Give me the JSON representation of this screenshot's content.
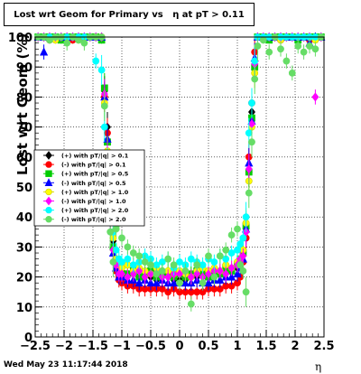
{
  "header": {
    "title": "Lost wrt Geom for Primary vs   η at pT > 0.11"
  },
  "footer": {
    "timestamp": "Wed May 23 11:17:44 2018"
  },
  "chart_data": {
    "type": "scatter",
    "title": "Lost wrt Geom for Primary vs   η at pT > 0.11",
    "xlabel": "η",
    "ylabel": "Lost wrt Geom (%)",
    "xlim": [
      -2.5,
      2.5
    ],
    "ylim": [
      0,
      100
    ],
    "xticks": [
      -2.5,
      -2,
      -1.5,
      -1,
      -0.5,
      0,
      0.5,
      1,
      1.5,
      2,
      2.5
    ],
    "xtick_labels": [
      "−2.5",
      "−2",
      "−1.5",
      "−1",
      "−0.5",
      "0",
      "0.5",
      "1",
      "1.5",
      "2",
      "2.5"
    ],
    "yticks": [
      0,
      10,
      20,
      30,
      40,
      50,
      60,
      70,
      80,
      90,
      100
    ],
    "grid": true,
    "legend_position": "left-middle",
    "series": [
      {
        "name": "(+) with pT/|q| > 0.1",
        "color": "#000000",
        "symbol": "diamond",
        "x": [
          -2.45,
          -2.35,
          -2.25,
          -2.15,
          -2.05,
          -1.95,
          -1.85,
          -1.75,
          -1.65,
          -1.55,
          -1.45,
          -1.35,
          -1.3,
          -1.25,
          -1.2,
          -1.15,
          -1.1,
          -1.05,
          -1,
          -0.9,
          -0.8,
          -0.7,
          -0.6,
          -0.5,
          -0.4,
          -0.3,
          -0.2,
          -0.1,
          0,
          0.1,
          0.2,
          0.3,
          0.4,
          0.5,
          0.6,
          0.7,
          0.8,
          0.9,
          1,
          1.05,
          1.1,
          1.15,
          1.2,
          1.25,
          1.3,
          1.35,
          1.45,
          1.55,
          1.65,
          1.75,
          1.85,
          1.95,
          2.05,
          2.15,
          2.25,
          2.35,
          2.45
        ],
        "y": [
          100,
          100,
          100,
          100,
          100,
          100,
          100,
          100,
          100,
          100,
          100,
          100,
          82,
          70,
          45,
          32,
          26,
          23,
          22,
          21,
          21,
          20,
          20,
          20,
          19,
          20,
          20,
          19,
          19,
          19,
          20,
          20,
          20,
          20,
          20,
          21,
          21,
          22,
          23,
          25,
          28,
          35,
          55,
          75,
          92,
          100,
          100,
          100,
          100,
          100,
          100,
          100,
          100,
          100,
          100,
          100,
          100
        ]
      },
      {
        "name": "(-) with pT/|q| > 0.1",
        "color": "#ff0000",
        "symbol": "circle",
        "x": [
          -2.45,
          -2.35,
          -2.25,
          -2.15,
          -2.05,
          -1.95,
          -1.85,
          -1.75,
          -1.65,
          -1.55,
          -1.45,
          -1.35,
          -1.3,
          -1.25,
          -1.2,
          -1.15,
          -1.1,
          -1.05,
          -1,
          -0.9,
          -0.8,
          -0.7,
          -0.6,
          -0.5,
          -0.4,
          -0.3,
          -0.2,
          -0.1,
          0,
          0.1,
          0.2,
          0.3,
          0.4,
          0.5,
          0.6,
          0.7,
          0.8,
          0.9,
          1,
          1.05,
          1.1,
          1.15,
          1.2,
          1.25,
          1.3,
          1.35,
          1.45,
          1.55,
          1.65,
          1.75,
          1.85,
          1.95,
          2.05,
          2.15,
          2.25,
          2.35,
          2.45
        ],
        "y": [
          100,
          100,
          99,
          100,
          100,
          100,
          99,
          100,
          100,
          100,
          100,
          100,
          80,
          68,
          43,
          30,
          22,
          19,
          18,
          17,
          17,
          16,
          16,
          16,
          16,
          16,
          15,
          16,
          15,
          15,
          15,
          15,
          15,
          16,
          16,
          16,
          17,
          17,
          18,
          20,
          25,
          33,
          60,
          78,
          95,
          100,
          100,
          100,
          100,
          99,
          100,
          100,
          100,
          100,
          99,
          100,
          100
        ]
      },
      {
        "name": "(+) with pT/|q| > 0.5",
        "color": "#00cc00",
        "symbol": "square",
        "x": [
          -2.45,
          -2.35,
          -2.25,
          -2.15,
          -2.05,
          -1.95,
          -1.85,
          -1.75,
          -1.65,
          -1.55,
          -1.45,
          -1.35,
          -1.3,
          -1.25,
          -1.2,
          -1.15,
          -1.1,
          -1.05,
          -1,
          -0.9,
          -0.8,
          -0.7,
          -0.6,
          -0.5,
          -0.4,
          -0.3,
          -0.2,
          -0.1,
          0,
          0.1,
          0.2,
          0.3,
          0.4,
          0.5,
          0.6,
          0.7,
          0.8,
          0.9,
          1,
          1.05,
          1.1,
          1.15,
          1.2,
          1.25,
          1.3,
          1.35,
          1.45,
          1.55,
          1.65,
          1.75,
          1.85,
          1.95,
          2.05,
          2.15,
          2.25,
          2.35,
          2.45
        ],
        "y": [
          100,
          100,
          100,
          100,
          99,
          100,
          100,
          100,
          100,
          100,
          100,
          99,
          83,
          65,
          42,
          30,
          25,
          22,
          21,
          21,
          22,
          20,
          21,
          22,
          20,
          21,
          21,
          20,
          21,
          20,
          21,
          22,
          21,
          20,
          22,
          21,
          23,
          22,
          24,
          26,
          28,
          37,
          55,
          73,
          90,
          100,
          100,
          99,
          100,
          100,
          100,
          100,
          99,
          100,
          100,
          100,
          100
        ]
      },
      {
        "name": "(-) with pT/|q| > 0.5",
        "color": "#0000ff",
        "symbol": "triangle",
        "x": [
          -2.45,
          -2.35,
          -2.25,
          -2.15,
          -2.05,
          -1.95,
          -1.85,
          -1.75,
          -1.65,
          -1.55,
          -1.45,
          -1.35,
          -1.3,
          -1.25,
          -1.2,
          -1.15,
          -1.1,
          -1.05,
          -1,
          -0.9,
          -0.8,
          -0.7,
          -0.6,
          -0.5,
          -0.4,
          -0.3,
          -0.2,
          -0.1,
          0,
          0.1,
          0.2,
          0.3,
          0.4,
          0.5,
          0.6,
          0.7,
          0.8,
          0.9,
          1,
          1.05,
          1.1,
          1.15,
          1.2,
          1.25,
          1.3,
          1.35,
          1.45,
          1.55,
          1.65,
          1.75,
          1.85,
          1.95,
          2.05,
          2.15,
          2.25,
          2.35,
          2.45
        ],
        "y": [
          100,
          95,
          100,
          100,
          100,
          100,
          100,
          100,
          100,
          100,
          100,
          100,
          80,
          66,
          40,
          28,
          23,
          20,
          20,
          19,
          19,
          18,
          19,
          18,
          18,
          19,
          18,
          18,
          18,
          18,
          18,
          19,
          18,
          18,
          19,
          19,
          20,
          20,
          21,
          23,
          26,
          36,
          58,
          72,
          93,
          100,
          100,
          100,
          100,
          100,
          100,
          100,
          100,
          100,
          98,
          100,
          100
        ]
      },
      {
        "name": "(+) with pT/|q| > 1.0",
        "color": "#ffff00",
        "symbol": "circle",
        "x": [
          -2.45,
          -2.35,
          -2.25,
          -2.15,
          -2.05,
          -1.95,
          -1.85,
          -1.75,
          -1.65,
          -1.55,
          -1.45,
          -1.35,
          -1.3,
          -1.25,
          -1.2,
          -1.15,
          -1.1,
          -1.05,
          -1,
          -0.9,
          -0.8,
          -0.7,
          -0.6,
          -0.5,
          -0.4,
          -0.3,
          -0.2,
          -0.1,
          0,
          0.1,
          0.2,
          0.3,
          0.4,
          0.5,
          0.6,
          0.7,
          0.8,
          0.9,
          1,
          1.05,
          1.1,
          1.15,
          1.2,
          1.25,
          1.3,
          1.35,
          1.45,
          1.55,
          1.65,
          1.75,
          1.85,
          1.95,
          2.05,
          2.15,
          2.25,
          2.35,
          2.45
        ],
        "y": [
          100,
          100,
          100,
          99,
          100,
          100,
          100,
          99,
          100,
          100,
          100,
          100,
          78,
          62,
          45,
          33,
          26,
          24,
          23,
          24,
          22,
          23,
          22,
          21,
          23,
          22,
          22,
          21,
          22,
          21,
          20,
          22,
          23,
          22,
          23,
          22,
          24,
          23,
          25,
          26,
          29,
          38,
          52,
          70,
          88,
          100,
          100,
          100,
          100,
          99,
          100,
          100,
          100,
          100,
          100,
          99,
          100
        ]
      },
      {
        "name": "(-) with pT/|q| > 1.0",
        "color": "#ff00ff",
        "symbol": "diamond",
        "x": [
          -2.45,
          -2.35,
          -2.25,
          -2.15,
          -2.05,
          -1.95,
          -1.85,
          -1.75,
          -1.65,
          -1.55,
          -1.45,
          -1.35,
          -1.3,
          -1.25,
          -1.2,
          -1.15,
          -1.1,
          -1.05,
          -1,
          -0.9,
          -0.8,
          -0.7,
          -0.6,
          -0.5,
          -0.4,
          -0.3,
          -0.2,
          -0.1,
          0,
          0.1,
          0.2,
          0.3,
          0.4,
          0.5,
          0.6,
          0.7,
          0.8,
          0.9,
          1,
          1.05,
          1.1,
          1.15,
          1.2,
          1.25,
          1.3,
          1.35,
          1.45,
          1.55,
          1.65,
          1.75,
          1.85,
          1.95,
          2.05,
          2.15,
          2.25,
          2.35,
          2.45
        ],
        "y": [
          100,
          100,
          100,
          100,
          100,
          100,
          100,
          100,
          100,
          100,
          100,
          100,
          81,
          60,
          41,
          29,
          24,
          21,
          21,
          20,
          21,
          22,
          20,
          21,
          21,
          20,
          20,
          21,
          21,
          22,
          20,
          21,
          20,
          21,
          22,
          22,
          21,
          23,
          24,
          26,
          27,
          35,
          56,
          71,
          91,
          100,
          100,
          100,
          100,
          100,
          100,
          100,
          100,
          100,
          100,
          80,
          100
        ]
      },
      {
        "name": "(+) with pT/|q| > 2.0",
        "color": "#00ffff",
        "symbol": "circle",
        "x": [
          -2.45,
          -2.35,
          -2.25,
          -2.15,
          -2.05,
          -1.95,
          -1.85,
          -1.75,
          -1.65,
          -1.55,
          -1.45,
          -1.35,
          -1.3,
          -1.25,
          -1.2,
          -1.15,
          -1.1,
          -1.05,
          -1,
          -0.9,
          -0.8,
          -0.7,
          -0.6,
          -0.5,
          -0.4,
          -0.3,
          -0.2,
          -0.1,
          0,
          0.1,
          0.2,
          0.3,
          0.4,
          0.5,
          0.6,
          0.7,
          0.8,
          0.9,
          1,
          1.05,
          1.1,
          1.15,
          1.2,
          1.25,
          1.3,
          1.35,
          1.45,
          1.55,
          1.65,
          1.75,
          1.85,
          1.95,
          2.05,
          2.15,
          2.25,
          2.35,
          2.45
        ],
        "y": [
          100,
          100,
          100,
          100,
          100,
          100,
          100,
          100,
          100,
          100,
          92,
          89,
          70,
          58,
          46,
          35,
          29,
          26,
          25,
          26,
          24,
          25,
          27,
          26,
          24,
          25,
          26,
          23,
          25,
          24,
          26,
          25,
          24,
          26,
          25,
          27,
          26,
          28,
          29,
          31,
          33,
          40,
          68,
          78,
          92,
          100,
          100,
          100,
          100,
          100,
          100,
          100,
          100,
          100,
          100,
          100,
          100
        ]
      },
      {
        "name": "(-) with pT/|q| > 2.0",
        "color": "#66dd66",
        "symbol": "circle",
        "x": [
          -2.45,
          -2.35,
          -2.25,
          -2.15,
          -2.05,
          -1.95,
          -1.85,
          -1.75,
          -1.65,
          -1.55,
          -1.45,
          -1.35,
          -1.3,
          -1.25,
          -1.2,
          -1.15,
          -1.1,
          -1.05,
          -1,
          -0.9,
          -0.8,
          -0.7,
          -0.6,
          -0.5,
          -0.4,
          -0.3,
          -0.2,
          -0.1,
          0,
          0.1,
          0.2,
          0.3,
          0.4,
          0.5,
          0.6,
          0.7,
          0.8,
          0.9,
          1,
          1.05,
          1.1,
          1.15,
          1.2,
          1.25,
          1.3,
          1.35,
          1.45,
          1.55,
          1.65,
          1.75,
          1.85,
          1.95,
          2.05,
          2.15,
          2.25,
          2.35,
          2.45
        ],
        "y": [
          100,
          100,
          99,
          100,
          100,
          98,
          100,
          99,
          98,
          100,
          100,
          100,
          77,
          55,
          35,
          25,
          36,
          38,
          33,
          30,
          28,
          27,
          25,
          24,
          21,
          22,
          26,
          24,
          18,
          22,
          11,
          24,
          18,
          27,
          20,
          27,
          29,
          34,
          36,
          24,
          22,
          15,
          48,
          65,
          86,
          97,
          99,
          95,
          100,
          96,
          92,
          88,
          97,
          95,
          97,
          96,
          100
        ]
      }
    ]
  }
}
